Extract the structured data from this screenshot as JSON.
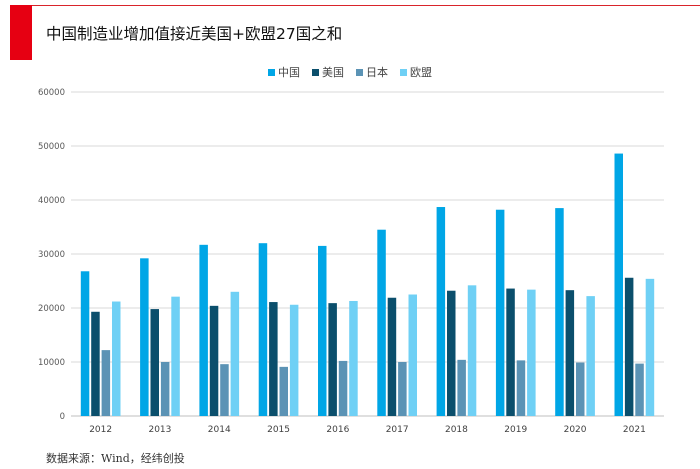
{
  "header": {
    "title": "中国制造业增加值接近美国+欧盟27国之和"
  },
  "source": "数据来源：Wind，经纬创投",
  "chart_data": {
    "type": "bar",
    "categories": [
      "2012",
      "2013",
      "2014",
      "2015",
      "2016",
      "2017",
      "2018",
      "2019",
      "2020",
      "2021"
    ],
    "series": [
      {
        "name": "中国",
        "color": "#00a6e6",
        "values": [
          26800,
          29200,
          31700,
          32000,
          31500,
          34500,
          38700,
          38200,
          38500,
          48600
        ]
      },
      {
        "name": "美国",
        "color": "#0b4f6c",
        "values": [
          19300,
          19800,
          20400,
          21100,
          20900,
          21900,
          23200,
          23600,
          23300,
          25600
        ]
      },
      {
        "name": "日本",
        "color": "#5b93b5",
        "values": [
          12200,
          10000,
          9600,
          9100,
          10200,
          10000,
          10400,
          10300,
          9900,
          9700
        ]
      },
      {
        "name": "欧盟",
        "color": "#6fd0f5",
        "values": [
          21200,
          22100,
          23000,
          20600,
          21300,
          22500,
          24200,
          23400,
          22200,
          25400
        ]
      }
    ],
    "ylim": [
      0,
      60000
    ],
    "yticks": [
      0,
      10000,
      20000,
      30000,
      40000,
      50000,
      60000
    ],
    "ytick_labels": [
      "0",
      "10000",
      "20000",
      "30000",
      "40000",
      "50000",
      "60000"
    ],
    "grid": true,
    "legend_position": "top-center",
    "xlabel": "",
    "ylabel": ""
  }
}
